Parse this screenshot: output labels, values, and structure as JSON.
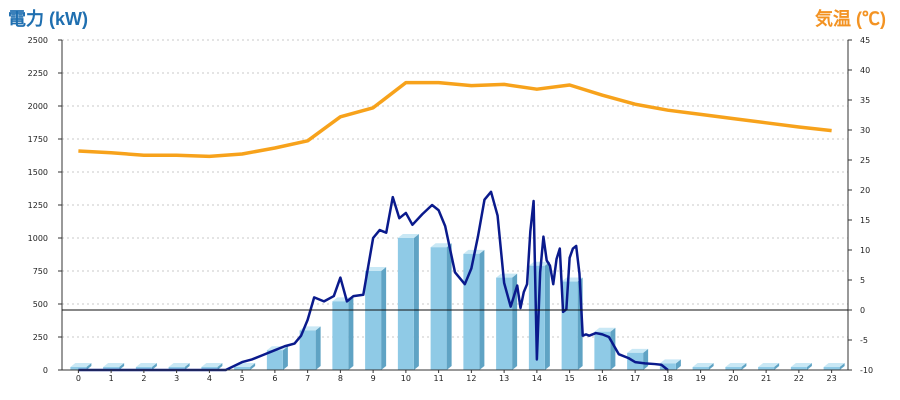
{
  "chart_data": {
    "type": "bar",
    "title_left": "電力 (kW)",
    "title_right": "気温 (℃)",
    "categories": [
      "0",
      "1",
      "2",
      "3",
      "4",
      "5",
      "6",
      "7",
      "8",
      "9",
      "10",
      "11",
      "12",
      "13",
      "14",
      "15",
      "16",
      "17",
      "18",
      "19",
      "20",
      "21",
      "22",
      "23"
    ],
    "y_left_ticks": [
      "0",
      "250",
      "500",
      "750",
      "1000",
      "1250",
      "1500",
      "1750",
      "2000",
      "2250",
      "2500"
    ],
    "y_right_ticks": [
      "-10",
      "-5",
      "0",
      "5",
      "10",
      "15",
      "20",
      "25",
      "30",
      "35",
      "40",
      "45"
    ],
    "ylim_left": [
      0,
      2500
    ],
    "ylim_right": [
      -10,
      45
    ],
    "grid": true,
    "colors": {
      "bar_front": "#8fcae6",
      "bar_top": "#c9e8f5",
      "bar_side": "#5fa3c4",
      "power_line": "#0a1a8c",
      "temp_line": "#f7a21b",
      "grid": "#c8c8c8",
      "title_left": "#1f6fb0",
      "title_right": "#f39323"
    },
    "bars": [
      0,
      0,
      0,
      0,
      0,
      0,
      150,
      300,
      520,
      750,
      1000,
      930,
      880,
      700,
      790,
      670,
      290,
      130,
      50,
      0,
      0,
      0,
      0,
      0
    ],
    "temperature": {
      "x": [
        0,
        1,
        2,
        3,
        4,
        5,
        6,
        7,
        8,
        9,
        10,
        11,
        12,
        13,
        14,
        15,
        16,
        17,
        18,
        19,
        20,
        21,
        22,
        23
      ],
      "values": [
        26.5,
        26.2,
        25.8,
        25.8,
        25.6,
        26.0,
        27.0,
        28.2,
        32.2,
        33.7,
        37.9,
        37.9,
        37.4,
        37.6,
        36.8,
        37.5,
        35.8,
        34.3,
        33.3,
        32.6,
        31.9,
        31.2,
        30.5,
        29.9
      ]
    },
    "power": {
      "x": [
        4.0,
        4.5,
        5.0,
        5.3,
        5.6,
        6.0,
        6.3,
        6.6,
        6.8,
        7.0,
        7.2,
        7.5,
        7.8,
        8.0,
        8.2,
        8.4,
        8.7,
        9.0,
        9.2,
        9.4,
        9.6,
        9.8,
        10.0,
        10.2,
        10.5,
        10.8,
        11.0,
        11.2,
        11.5,
        11.8,
        12.0,
        12.2,
        12.4,
        12.6,
        12.8,
        13.0,
        13.2,
        13.4,
        13.5,
        13.6,
        13.7,
        13.8,
        13.9,
        14.0,
        14.1,
        14.2,
        14.3,
        14.4,
        14.5,
        14.6,
        14.7,
        14.8,
        14.9,
        15.0,
        15.1,
        15.2,
        15.3,
        15.4,
        15.5,
        15.6,
        15.8,
        16.0,
        16.2,
        16.5,
        16.8,
        17.0,
        17.3,
        17.6,
        17.8,
        18.0
      ],
      "values": [
        0,
        0,
        60,
        80,
        110,
        150,
        180,
        200,
        260,
        380,
        550,
        520,
        560,
        700,
        520,
        560,
        570,
        1000,
        1060,
        1040,
        1310,
        1150,
        1190,
        1100,
        1180,
        1250,
        1210,
        1090,
        740,
        650,
        770,
        1010,
        1290,
        1350,
        1170,
        660,
        480,
        640,
        470,
        590,
        650,
        1050,
        1280,
        80,
        740,
        1010,
        830,
        790,
        650,
        840,
        920,
        440,
        460,
        850,
        920,
        940,
        730,
        260,
        270,
        260,
        280,
        270,
        250,
        120,
        90,
        60,
        50,
        45,
        40,
        0
      ]
    }
  }
}
